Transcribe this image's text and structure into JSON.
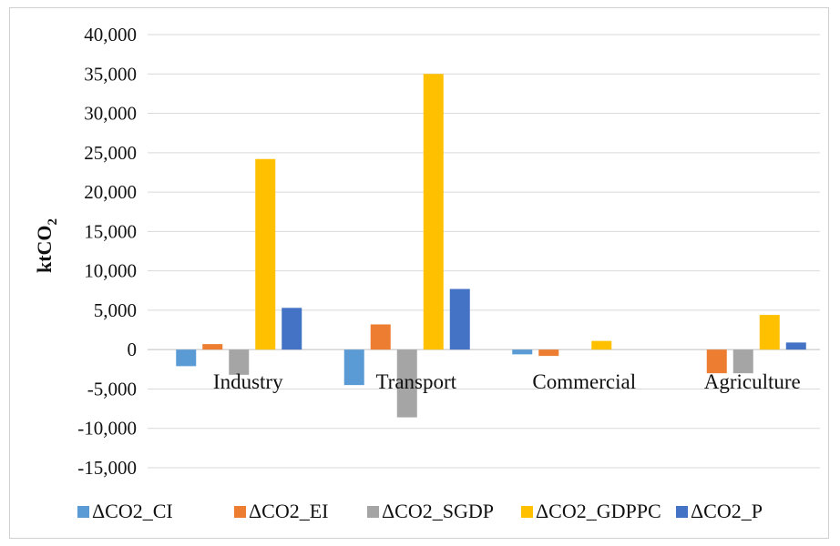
{
  "chart_data": {
    "type": "bar",
    "ylabel_main": "ktCO",
    "ylabel_sub": "2",
    "categories": [
      "Industry",
      "Transport",
      "Commercial",
      "Agriculture"
    ],
    "ylim": [
      -15000,
      40000
    ],
    "yticks": [
      40000,
      35000,
      30000,
      25000,
      20000,
      15000,
      10000,
      5000,
      0,
      -5000,
      -10000,
      -15000
    ],
    "ytick_labels": [
      "40,000",
      "35,000",
      "30,000",
      "25,000",
      "20,000",
      "15,000",
      "10,000",
      "5,000",
      "0",
      "-5,000",
      "-10,000",
      "-15,000"
    ],
    "grid": true,
    "legend_position": "bottom",
    "series": [
      {
        "name": "ΔCO2_CI",
        "color": "#5B9BD5",
        "values": [
          -2100,
          -4500,
          -600,
          0
        ]
      },
      {
        "name": "ΔCO2_EI",
        "color": "#ED7D31",
        "values": [
          700,
          3200,
          -800,
          -3000
        ]
      },
      {
        "name": "ΔCO2_SGDP",
        "color": "#A5A5A5",
        "values": [
          -3200,
          -8600,
          0,
          -3000
        ]
      },
      {
        "name": "ΔCO2_GDPPC",
        "color": "#FFC000",
        "values": [
          24200,
          35000,
          1100,
          4400
        ]
      },
      {
        "name": "ΔCO2_P",
        "color": "#4472C4",
        "values": [
          5300,
          7700,
          0,
          900
        ]
      }
    ]
  }
}
